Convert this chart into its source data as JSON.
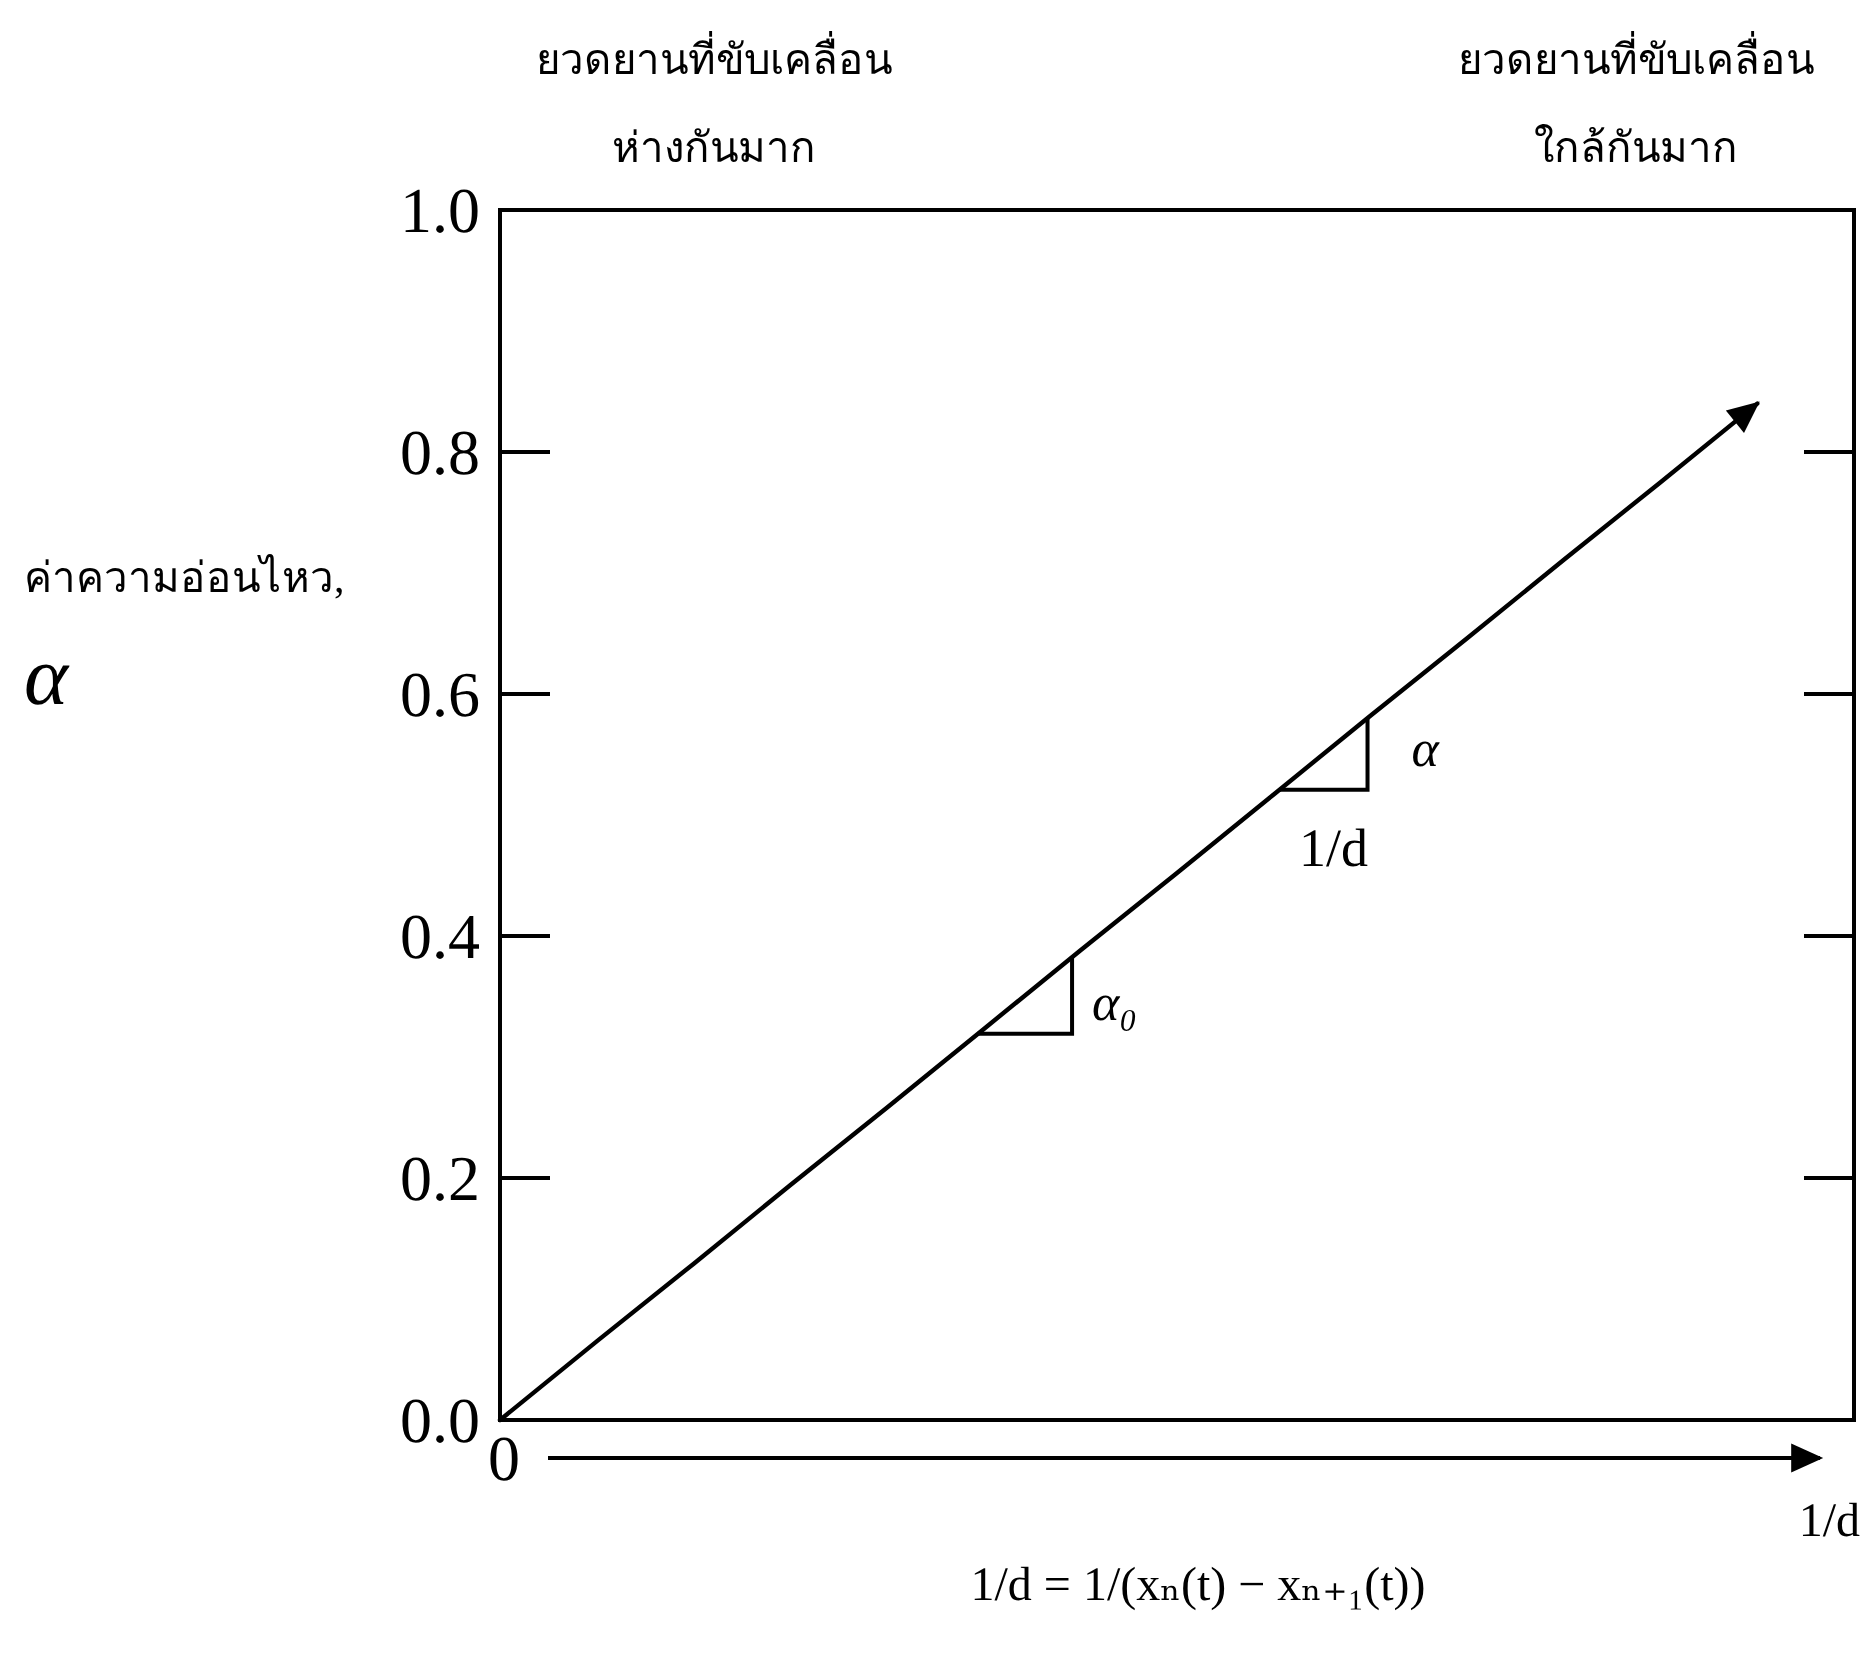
{
  "chart_data": {
    "type": "line",
    "categories": [
      null,
      null,
      null,
      null,
      null,
      null,
      null,
      null,
      null,
      null,
      null,
      null,
      null,
      null,
      null
    ],
    "series": [
      {
        "color": "#000000",
        "values": [
          0,
          0.065,
          0.129,
          0.194,
          0.258,
          0.323,
          0.388,
          0.452,
          0.517,
          0.582,
          0.646,
          0.711,
          0.775,
          0.84,
          null
        ]
      }
    ],
    "ylabel": "ค่าความอ่อนไหว,\nα",
    "xlabel": "1/d",
    "ylim": [
      0,
      1
    ],
    "yticks": [
      {
        "value": 0,
        "label": "0.0"
      },
      0.2,
      0.4,
      0.6,
      0.8,
      {
        "value": 1,
        "label": "1.0"
      }
    ],
    "line_style": "solid",
    "annotations": [
      "ยวดยานที่ขับเคลื่อน\nห่างกันมาก",
      "ยวดยานที่ขับเคลื่อน\nใกล้กันมาก",
      "0",
      "α₀",
      "α",
      "1/d",
      "1/d = 1/(xₙ(t) − xₙ₊₁(t))"
    ]
  }
}
